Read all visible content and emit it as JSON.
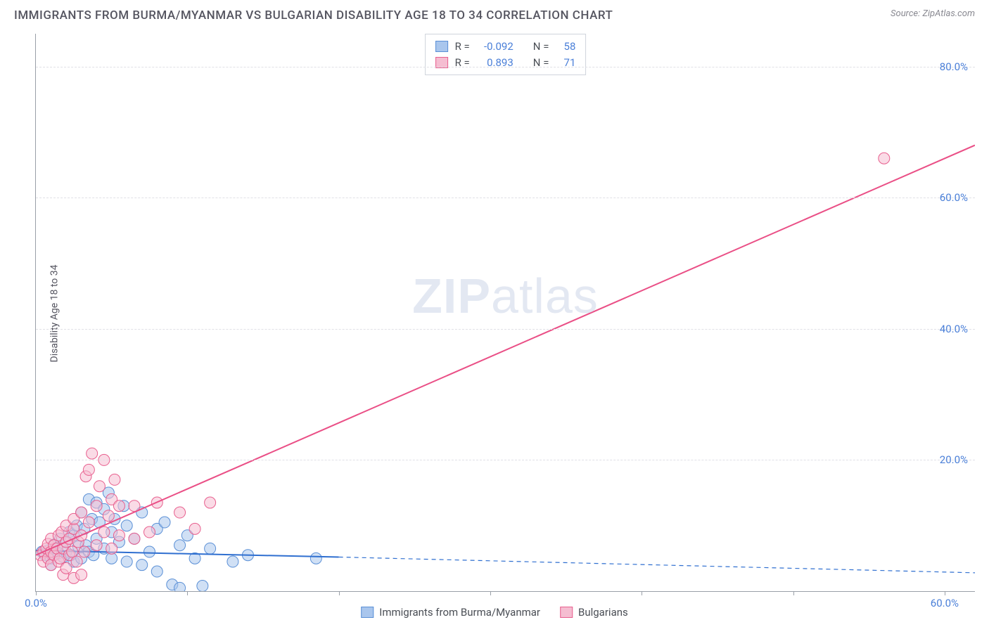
{
  "header": {
    "title": "IMMIGRANTS FROM BURMA/MYANMAR VS BULGARIAN DISABILITY AGE 18 TO 34 CORRELATION CHART",
    "source_label": "Source: ",
    "source_name": "ZipAtlas.com"
  },
  "watermark": {
    "part1": "ZIP",
    "part2": "atlas"
  },
  "chart": {
    "type": "scatter",
    "ylabel": "Disability Age 18 to 34",
    "xlim": [
      0,
      62
    ],
    "ylim": [
      0,
      85
    ],
    "x_ticks": [
      0,
      10,
      20,
      30,
      40,
      50,
      60
    ],
    "x_tick_labels": [
      "0.0%",
      "",
      "",
      "",
      "",
      "",
      "60.0%"
    ],
    "y_ticks": [
      20,
      40,
      60,
      80
    ],
    "y_tick_labels": [
      "20.0%",
      "40.0%",
      "60.0%",
      "80.0%"
    ],
    "grid_color": "#e0e0e6",
    "axis_color": "#9aa0a8",
    "tick_label_color": "#4a7fd8",
    "background_color": "#ffffff",
    "marker_radius": 8,
    "marker_opacity": 0.55,
    "series": [
      {
        "key": "burma",
        "label": "Immigrants from Burma/Myanmar",
        "color_fill": "#a9c6ed",
        "color_stroke": "#5a8fd6",
        "R": "-0.092",
        "N": "58",
        "trend": {
          "x1": 0,
          "y1": 6.2,
          "x2": 20,
          "y2": 5.2,
          "color": "#2f6fd0",
          "width": 2,
          "dash": "none",
          "extend_dash_to_x": 62,
          "extend_y": 2.8
        },
        "points": [
          [
            0.4,
            6.0
          ],
          [
            0.6,
            5.5
          ],
          [
            0.8,
            6.2
          ],
          [
            1.0,
            5.0
          ],
          [
            1.2,
            7.1
          ],
          [
            1.0,
            4.0
          ],
          [
            1.4,
            6.5
          ],
          [
            1.5,
            5.8
          ],
          [
            1.6,
            8.0
          ],
          [
            1.8,
            5.2
          ],
          [
            2.0,
            7.5
          ],
          [
            2.0,
            6.0
          ],
          [
            2.2,
            9.0
          ],
          [
            2.3,
            5.5
          ],
          [
            2.5,
            8.5
          ],
          [
            2.5,
            4.5
          ],
          [
            2.7,
            10.0
          ],
          [
            2.8,
            6.8
          ],
          [
            3.0,
            12.0
          ],
          [
            3.0,
            5.0
          ],
          [
            3.2,
            9.5
          ],
          [
            3.3,
            7.0
          ],
          [
            3.5,
            14.0
          ],
          [
            3.5,
            6.0
          ],
          [
            3.7,
            11.0
          ],
          [
            3.8,
            5.5
          ],
          [
            4.0,
            13.5
          ],
          [
            4.0,
            8.0
          ],
          [
            4.2,
            10.5
          ],
          [
            4.5,
            12.5
          ],
          [
            4.5,
            6.5
          ],
          [
            4.8,
            15.0
          ],
          [
            5.0,
            9.0
          ],
          [
            5.0,
            5.0
          ],
          [
            5.2,
            11.0
          ],
          [
            5.5,
            7.5
          ],
          [
            5.8,
            13.0
          ],
          [
            6.0,
            10.0
          ],
          [
            6.0,
            4.5
          ],
          [
            6.5,
            8.0
          ],
          [
            7.0,
            12.0
          ],
          [
            7.0,
            4.0
          ],
          [
            7.5,
            6.0
          ],
          [
            8.0,
            9.5
          ],
          [
            8.0,
            3.0
          ],
          [
            8.5,
            10.5
          ],
          [
            9.0,
            1.0
          ],
          [
            9.5,
            7.0
          ],
          [
            9.5,
            0.5
          ],
          [
            10.0,
            8.5
          ],
          [
            10.5,
            5.0
          ],
          [
            11.0,
            0.8
          ],
          [
            11.5,
            6.5
          ],
          [
            13.0,
            4.5
          ],
          [
            14.0,
            5.5
          ],
          [
            18.5,
            5.0
          ]
        ]
      },
      {
        "key": "bulgarian",
        "label": "Bulgarians",
        "color_fill": "#f5bdd1",
        "color_stroke": "#e85f8e",
        "R": "0.893",
        "N": "71",
        "trend": {
          "x1": 0,
          "y1": 5.5,
          "x2": 62,
          "y2": 68.0,
          "color": "#ea4f86",
          "width": 2,
          "dash": "none"
        },
        "points": [
          [
            0.3,
            5.5
          ],
          [
            0.5,
            6.0
          ],
          [
            0.5,
            4.5
          ],
          [
            0.7,
            6.5
          ],
          [
            0.8,
            5.0
          ],
          [
            0.8,
            7.2
          ],
          [
            1.0,
            6.0
          ],
          [
            1.0,
            4.0
          ],
          [
            1.0,
            8.0
          ],
          [
            1.2,
            5.5
          ],
          [
            1.2,
            7.0
          ],
          [
            1.4,
            6.5
          ],
          [
            1.5,
            4.5
          ],
          [
            1.5,
            8.5
          ],
          [
            1.6,
            5.0
          ],
          [
            1.7,
            9.0
          ],
          [
            1.8,
            2.5
          ],
          [
            1.8,
            6.5
          ],
          [
            2.0,
            7.5
          ],
          [
            2.0,
            3.5
          ],
          [
            2.0,
            10.0
          ],
          [
            2.2,
            5.5
          ],
          [
            2.2,
            8.0
          ],
          [
            2.4,
            6.0
          ],
          [
            2.5,
            9.5
          ],
          [
            2.5,
            2.0
          ],
          [
            2.5,
            11.0
          ],
          [
            2.7,
            4.5
          ],
          [
            2.8,
            7.5
          ],
          [
            3.0,
            8.5
          ],
          [
            3.0,
            2.5
          ],
          [
            3.0,
            12.0
          ],
          [
            3.2,
            6.0
          ],
          [
            3.3,
            17.5
          ],
          [
            3.5,
            10.5
          ],
          [
            3.5,
            18.5
          ],
          [
            3.7,
            21.0
          ],
          [
            4.0,
            13.0
          ],
          [
            4.0,
            7.0
          ],
          [
            4.2,
            16.0
          ],
          [
            4.5,
            9.0
          ],
          [
            4.5,
            20.0
          ],
          [
            4.8,
            11.5
          ],
          [
            5.0,
            14.0
          ],
          [
            5.0,
            6.5
          ],
          [
            5.2,
            17.0
          ],
          [
            5.5,
            8.5
          ],
          [
            5.5,
            13.0
          ],
          [
            6.5,
            13.0
          ],
          [
            6.5,
            8.0
          ],
          [
            7.5,
            9.0
          ],
          [
            8.0,
            13.5
          ],
          [
            9.5,
            12.0
          ],
          [
            10.5,
            9.5
          ],
          [
            11.5,
            13.5
          ],
          [
            56.0,
            66.0
          ]
        ]
      }
    ]
  },
  "stats_box": {
    "R_label": "R =",
    "N_label": "N ="
  },
  "bottom_legend": {
    "items": [
      "burma",
      "bulgarian"
    ]
  }
}
